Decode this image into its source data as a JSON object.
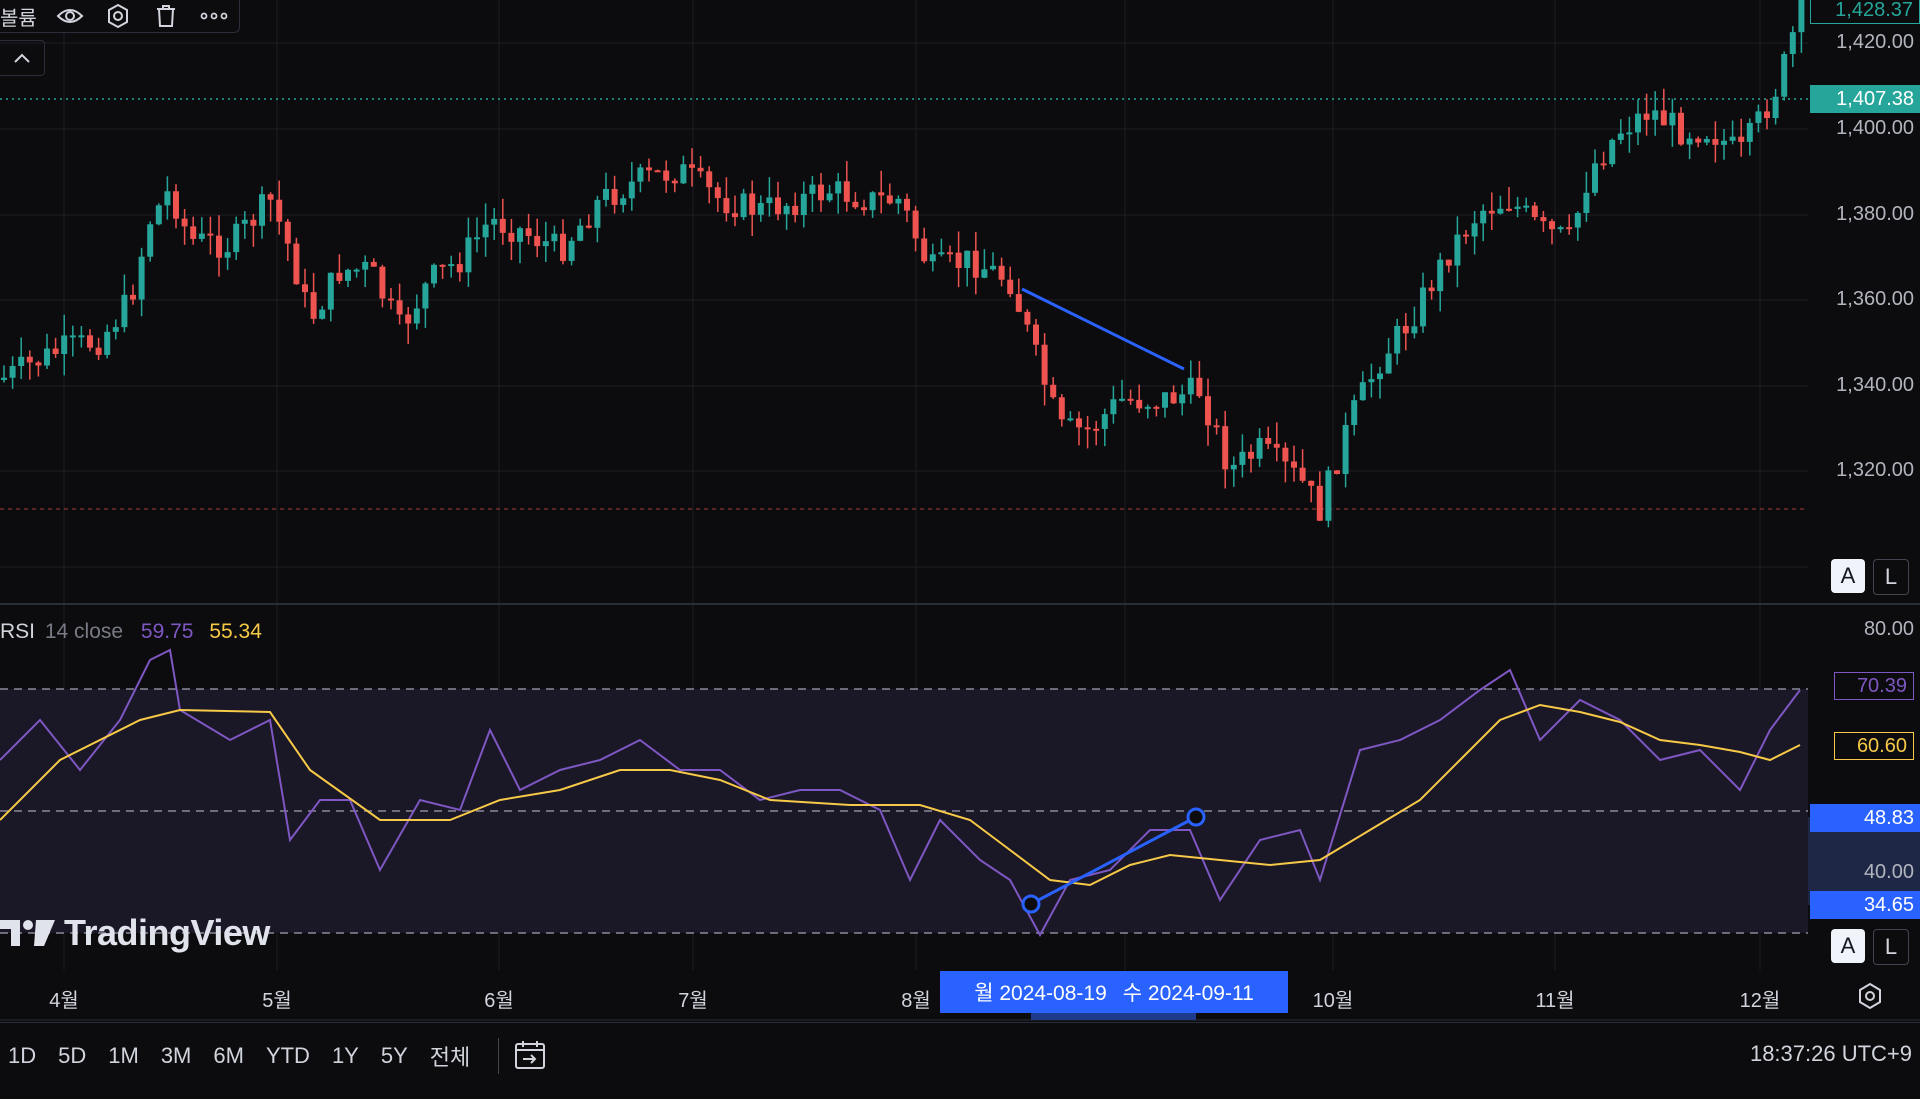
{
  "toolbar": {
    "volume_label": "볼륨"
  },
  "price_axis": {
    "labels": [
      "1,420.00",
      "1,400.00",
      "1,380.00",
      "1,360.00",
      "1,340.00",
      "1,320.00"
    ],
    "last_price_badge": "1,428.37",
    "current_price_badge": "1,407.38",
    "auto_btn": "A",
    "log_btn": "L"
  },
  "rsi": {
    "name": "RSI",
    "params": "14 close",
    "rsi_value": "59.75",
    "ma_value": "55.34",
    "axis_labels": [
      "80.00",
      "40.00"
    ],
    "badges": {
      "rsi": "70.39",
      "ma": "60.60",
      "cross_top": "48.83",
      "cross_bottom": "34.65"
    },
    "auto_btn": "A",
    "log_btn": "L"
  },
  "time_axis": {
    "labels": [
      "4월",
      "5월",
      "6월",
      "7월",
      "8월",
      "10월",
      "11월",
      "12월"
    ],
    "range_start": "월 2024-08-19",
    "range_end": "수 2024-09-11"
  },
  "periods": [
    "1D",
    "5D",
    "1M",
    "3M",
    "6M",
    "YTD",
    "1Y",
    "5Y",
    "전체"
  ],
  "clock": "18:37:26 UTC+9",
  "logo": {
    "text": "TradingView"
  },
  "colors": {
    "up": "#26a69a",
    "down": "#ef5350",
    "rsi": "#7e57c2",
    "rsi_ma": "#f7c948",
    "trendline": "#2962ff",
    "background": "#0c0c0e"
  },
  "icons": [
    "eye-icon",
    "settings-icon",
    "trash-icon",
    "more-icon",
    "chevron-up-icon",
    "calendar-goto-icon",
    "gear-icon"
  ]
}
